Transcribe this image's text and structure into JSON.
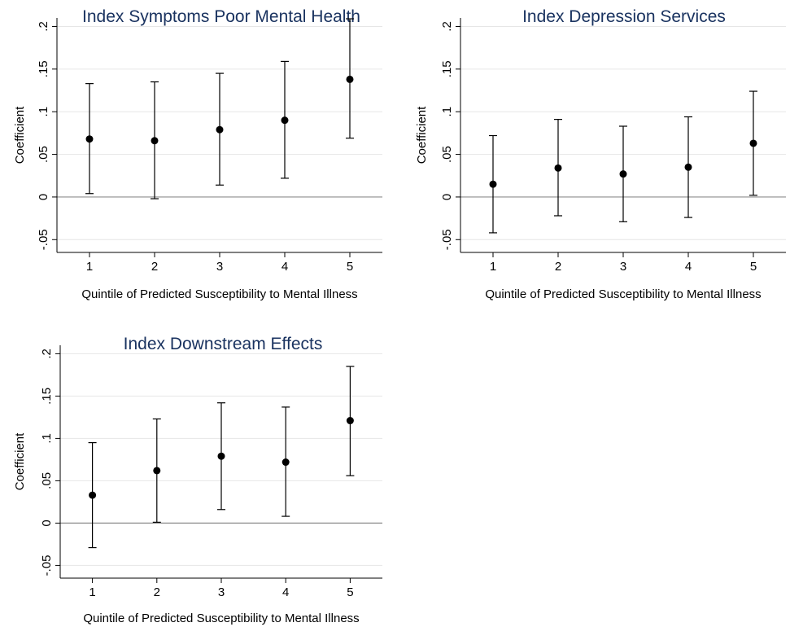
{
  "chart_data": [
    {
      "type": "scatter",
      "title": "Index Symptoms Poor Mental Health",
      "xlabel": "Quintile of Predicted Susceptibility to Mental Illness",
      "ylabel": "Coefficient",
      "x": [
        1,
        2,
        3,
        4,
        5
      ],
      "x_ticks": [
        "1",
        "2",
        "3",
        "4",
        "5"
      ],
      "y_ticks": [
        -0.05,
        0,
        0.05,
        0.1,
        0.15,
        0.2
      ],
      "y_tick_labels": [
        "-.05",
        "0",
        ".05",
        ".1",
        ".15",
        ".2"
      ],
      "ylim": [
        -0.065,
        0.21
      ],
      "xlim": [
        0.5,
        5.5
      ],
      "series": [
        {
          "values": [
            0.068,
            0.066,
            0.079,
            0.09,
            0.138
          ],
          "ci_low": [
            0.004,
            -0.002,
            0.014,
            0.022,
            0.069
          ],
          "ci_high": [
            0.133,
            0.135,
            0.145,
            0.159,
            0.209
          ]
        }
      ],
      "grid": true,
      "reference_line": 0
    },
    {
      "type": "scatter",
      "title": "Index Depression Services",
      "xlabel": "Quintile of Predicted Susceptibility to Mental Illness",
      "ylabel": "Coefficient",
      "x": [
        1,
        2,
        3,
        4,
        5
      ],
      "x_ticks": [
        "1",
        "2",
        "3",
        "4",
        "5"
      ],
      "y_ticks": [
        -0.05,
        0,
        0.05,
        0.1,
        0.15,
        0.2
      ],
      "y_tick_labels": [
        "-.05",
        "0",
        ".05",
        ".1",
        ".15",
        ".2"
      ],
      "ylim": [
        -0.065,
        0.21
      ],
      "xlim": [
        0.5,
        5.5
      ],
      "series": [
        {
          "values": [
            0.015,
            0.034,
            0.027,
            0.035,
            0.063
          ],
          "ci_low": [
            -0.042,
            -0.022,
            -0.029,
            -0.024,
            0.002
          ],
          "ci_high": [
            0.072,
            0.091,
            0.083,
            0.094,
            0.124
          ]
        }
      ],
      "grid": true,
      "reference_line": 0
    },
    {
      "type": "scatter",
      "title": "Index Downstream Effects",
      "xlabel": "Quintile of Predicted Susceptibility to Mental Illness",
      "ylabel": "Coefficient",
      "x": [
        1,
        2,
        3,
        4,
        5
      ],
      "x_ticks": [
        "1",
        "2",
        "3",
        "4",
        "5"
      ],
      "y_ticks": [
        -0.05,
        0,
        0.05,
        0.1,
        0.15,
        0.2
      ],
      "y_tick_labels": [
        "-.05",
        "0",
        ".05",
        ".1",
        ".15",
        ".2"
      ],
      "ylim": [
        -0.065,
        0.21
      ],
      "xlim": [
        0.5,
        5.5
      ],
      "series": [
        {
          "values": [
            0.033,
            0.062,
            0.079,
            0.072,
            0.121
          ],
          "ci_low": [
            -0.029,
            0.001,
            0.016,
            0.008,
            0.056
          ],
          "ci_high": [
            0.095,
            0.123,
            0.142,
            0.137,
            0.185
          ]
        }
      ],
      "grid": true,
      "reference_line": 0
    }
  ],
  "colors": {
    "title": "#1a3360",
    "grid": "#e6e6e6",
    "zero_line": "#8c8c8c",
    "marker": "#000000",
    "axis": "#000000"
  }
}
